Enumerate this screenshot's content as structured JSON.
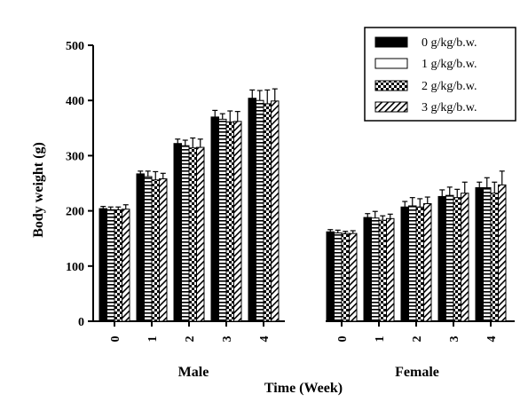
{
  "chart_data": {
    "type": "bar",
    "ylabel": "Body weight (g)",
    "xlabel": "Time (Week)",
    "ylim": [
      0,
      500
    ],
    "yticks": [
      0,
      100,
      200,
      300,
      400,
      500
    ],
    "groups": [
      {
        "name": "Male",
        "categories": [
          "0",
          "1",
          "2",
          "3",
          "4"
        ],
        "series": [
          {
            "name": "0 g/kg/b.w.",
            "values": [
              204,
              267,
              322,
              370,
              404
            ],
            "errors": [
              4,
              5,
              8,
              12,
              15
            ]
          },
          {
            "name": "1 g/kg/b.w.",
            "values": [
              202,
              262,
              318,
              366,
              400
            ],
            "errors": [
              5,
              10,
              10,
              10,
              18
            ]
          },
          {
            "name": "2 g/kg/b.w.",
            "values": [
              202,
              256,
              314,
              361,
              394
            ],
            "errors": [
              5,
              15,
              18,
              20,
              25
            ]
          },
          {
            "name": "3 g/kg/b.w.",
            "values": [
              203,
              258,
              315,
              362,
              399
            ],
            "errors": [
              8,
              10,
              15,
              18,
              22
            ]
          }
        ]
      },
      {
        "name": "Female",
        "categories": [
          "0",
          "1",
          "2",
          "3",
          "4"
        ],
        "series": [
          {
            "name": "0 g/kg/b.w.",
            "values": [
              162,
              188,
              207,
              226,
              242
            ],
            "errors": [
              4,
              7,
              10,
              12,
              10
            ]
          },
          {
            "name": "1 g/kg/b.w.",
            "values": [
              160,
              187,
              209,
              228,
              242
            ],
            "errors": [
              5,
              12,
              15,
              15,
              18
            ]
          },
          {
            "name": "2 g/kg/b.w.",
            "values": [
              159,
              183,
              207,
              224,
              232
            ],
            "errors": [
              4,
              8,
              15,
              15,
              20
            ]
          },
          {
            "name": "3 g/kg/b.w.",
            "values": [
              159,
              186,
              213,
              232,
              247
            ],
            "errors": [
              5,
              8,
              12,
              20,
              25
            ]
          }
        ]
      }
    ],
    "legend": {
      "position": "top-right",
      "entries": [
        "0 g/kg/b.w.",
        "1 g/kg/b.w.",
        "2 g/kg/b.w.",
        "3 g/kg/b.w."
      ]
    },
    "fills": [
      "solid-black",
      "horizontal-stripes",
      "checkerboard",
      "diagonal-hatch"
    ],
    "grid": false
  }
}
